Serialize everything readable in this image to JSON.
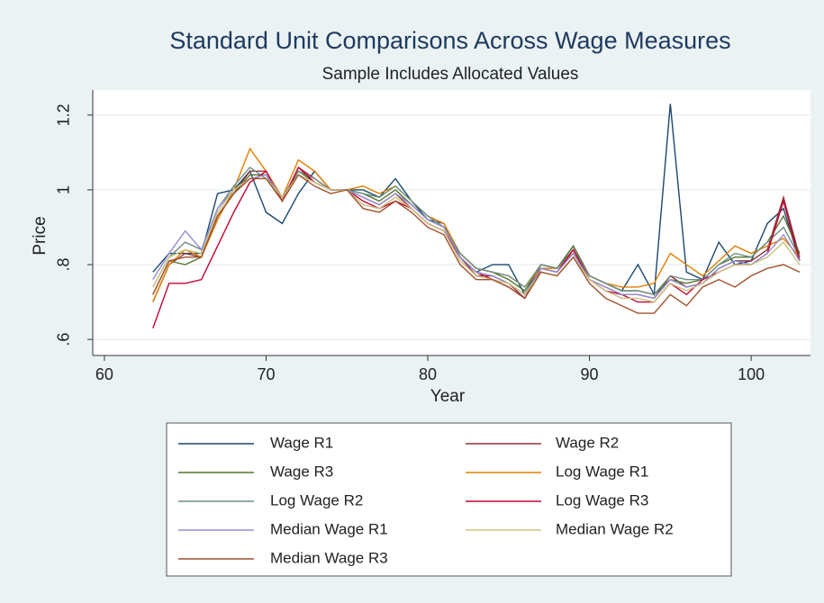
{
  "chart_data": {
    "type": "line",
    "title": "Standard Unit Comparisons Across Wage Measures",
    "subtitle": "Sample Includes Allocated Values",
    "x_label": "Year",
    "y_label": "Price",
    "x": [
      63,
      64,
      65,
      66,
      67,
      68,
      69,
      70,
      71,
      72,
      73,
      74,
      75,
      76,
      77,
      78,
      79,
      80,
      81,
      82,
      83,
      84,
      85,
      86,
      87,
      88,
      89,
      90,
      91,
      92,
      93,
      94,
      95,
      96,
      97,
      98,
      99,
      100,
      101,
      102,
      103
    ],
    "xlim": [
      59.28,
      103.67
    ],
    "xticks": [
      60,
      70,
      80,
      90,
      100
    ],
    "ylim": [
      0.557,
      1.267
    ],
    "yticks": [
      {
        "value": 0.6,
        "label": ".6"
      },
      {
        "value": 0.8,
        "label": ".8"
      },
      1,
      1.2
    ],
    "grid": true,
    "series": [
      {
        "name": "Wage R1",
        "color": "#1a476f",
        "values": [
          0.78,
          0.83,
          0.83,
          0.83,
          0.99,
          1.0,
          1.05,
          0.94,
          0.91,
          0.99,
          1.05,
          1.0,
          1.0,
          1.0,
          0.98,
          1.03,
          0.97,
          0.92,
          0.91,
          0.82,
          0.78,
          0.8,
          0.8,
          0.72,
          0.8,
          0.79,
          0.85,
          0.77,
          0.75,
          0.73,
          0.8,
          0.72,
          1.23,
          0.78,
          0.76,
          0.86,
          0.8,
          0.81,
          0.91,
          0.95,
          0.81
        ]
      },
      {
        "name": "Wage R2",
        "color": "#90353b",
        "values": [
          0.7,
          0.8,
          0.83,
          0.82,
          0.93,
          0.99,
          1.05,
          1.05,
          0.97,
          1.06,
          1.03,
          1.0,
          1.0,
          0.98,
          0.96,
          0.99,
          0.95,
          0.91,
          0.89,
          0.82,
          0.77,
          0.77,
          0.75,
          0.71,
          0.79,
          0.78,
          0.84,
          0.76,
          0.74,
          0.72,
          0.72,
          0.71,
          0.77,
          0.74,
          0.75,
          0.79,
          0.81,
          0.81,
          0.84,
          0.98,
          0.82
        ]
      },
      {
        "name": "Wage R3",
        "color": "#55752f",
        "values": [
          0.72,
          0.81,
          0.8,
          0.82,
          0.93,
          0.99,
          1.04,
          1.04,
          0.97,
          1.05,
          1.02,
          1.0,
          1.0,
          0.99,
          0.97,
          1.0,
          0.96,
          0.92,
          0.9,
          0.83,
          0.79,
          0.78,
          0.76,
          0.73,
          0.8,
          0.79,
          0.85,
          0.77,
          0.75,
          0.73,
          0.73,
          0.72,
          0.76,
          0.75,
          0.76,
          0.8,
          0.82,
          0.82,
          0.86,
          0.93,
          0.83
        ]
      },
      {
        "name": "Log Wage R1",
        "color": "#e37e00",
        "values": [
          0.7,
          0.8,
          0.84,
          0.82,
          0.92,
          1.0,
          1.11,
          1.05,
          0.98,
          1.08,
          1.05,
          1.0,
          1.0,
          1.01,
          0.99,
          1.01,
          0.97,
          0.93,
          0.91,
          0.83,
          0.79,
          0.78,
          0.77,
          0.74,
          0.79,
          0.79,
          0.83,
          0.77,
          0.75,
          0.74,
          0.74,
          0.75,
          0.83,
          0.8,
          0.77,
          0.81,
          0.85,
          0.83,
          0.85,
          0.87,
          0.82
        ]
      },
      {
        "name": "Log Wage R2",
        "color": "#6e8e84",
        "values": [
          0.74,
          0.82,
          0.86,
          0.84,
          0.95,
          1.01,
          1.06,
          1.03,
          0.98,
          1.05,
          1.03,
          1.0,
          1.0,
          0.99,
          0.98,
          1.01,
          0.97,
          0.93,
          0.9,
          0.83,
          0.79,
          0.78,
          0.77,
          0.74,
          0.8,
          0.79,
          0.84,
          0.77,
          0.75,
          0.73,
          0.73,
          0.72,
          0.77,
          0.76,
          0.76,
          0.8,
          0.83,
          0.82,
          0.86,
          0.9,
          0.82
        ]
      },
      {
        "name": "Log Wage R3",
        "color": "#c10534",
        "values": [
          0.63,
          0.75,
          0.75,
          0.76,
          0.85,
          0.94,
          1.02,
          1.05,
          0.97,
          1.06,
          1.02,
          1.0,
          1.0,
          0.97,
          0.95,
          0.97,
          0.95,
          0.91,
          0.89,
          0.82,
          0.78,
          0.76,
          0.74,
          0.71,
          0.79,
          0.78,
          0.84,
          0.76,
          0.73,
          0.72,
          0.7,
          0.7,
          0.75,
          0.72,
          0.76,
          0.78,
          0.8,
          0.8,
          0.83,
          0.97,
          0.81
        ]
      },
      {
        "name": "Median Wage R1",
        "color": "#938dd2",
        "values": [
          0.76,
          0.83,
          0.89,
          0.84,
          0.95,
          1.0,
          1.03,
          1.04,
          0.98,
          1.04,
          1.02,
          1.0,
          1.0,
          0.98,
          0.96,
          0.99,
          0.96,
          0.92,
          0.9,
          0.82,
          0.78,
          0.77,
          0.75,
          0.72,
          0.79,
          0.78,
          0.83,
          0.76,
          0.74,
          0.72,
          0.72,
          0.71,
          0.76,
          0.74,
          0.75,
          0.79,
          0.81,
          0.8,
          0.83,
          0.88,
          0.81
        ]
      },
      {
        "name": "Median Wage R2",
        "color": "#cac27e",
        "values": [
          0.74,
          0.82,
          0.84,
          0.83,
          0.94,
          1.0,
          1.03,
          1.03,
          0.98,
          1.04,
          1.02,
          1.0,
          1.0,
          0.96,
          0.95,
          0.98,
          0.95,
          0.91,
          0.89,
          0.81,
          0.77,
          0.76,
          0.75,
          0.72,
          0.78,
          0.77,
          0.82,
          0.76,
          0.73,
          0.71,
          0.71,
          0.7,
          0.75,
          0.73,
          0.75,
          0.78,
          0.8,
          0.8,
          0.82,
          0.86,
          0.8
        ]
      },
      {
        "name": "Median Wage R3",
        "color": "#a0522d",
        "values": [
          0.72,
          0.81,
          0.82,
          0.82,
          0.93,
          0.99,
          1.03,
          1.03,
          0.97,
          1.04,
          1.01,
          0.99,
          1.0,
          0.95,
          0.94,
          0.97,
          0.94,
          0.9,
          0.88,
          0.8,
          0.76,
          0.76,
          0.74,
          0.71,
          0.78,
          0.77,
          0.82,
          0.75,
          0.71,
          0.69,
          0.67,
          0.67,
          0.72,
          0.69,
          0.74,
          0.76,
          0.74,
          0.77,
          0.79,
          0.8,
          0.78
        ]
      }
    ]
  }
}
